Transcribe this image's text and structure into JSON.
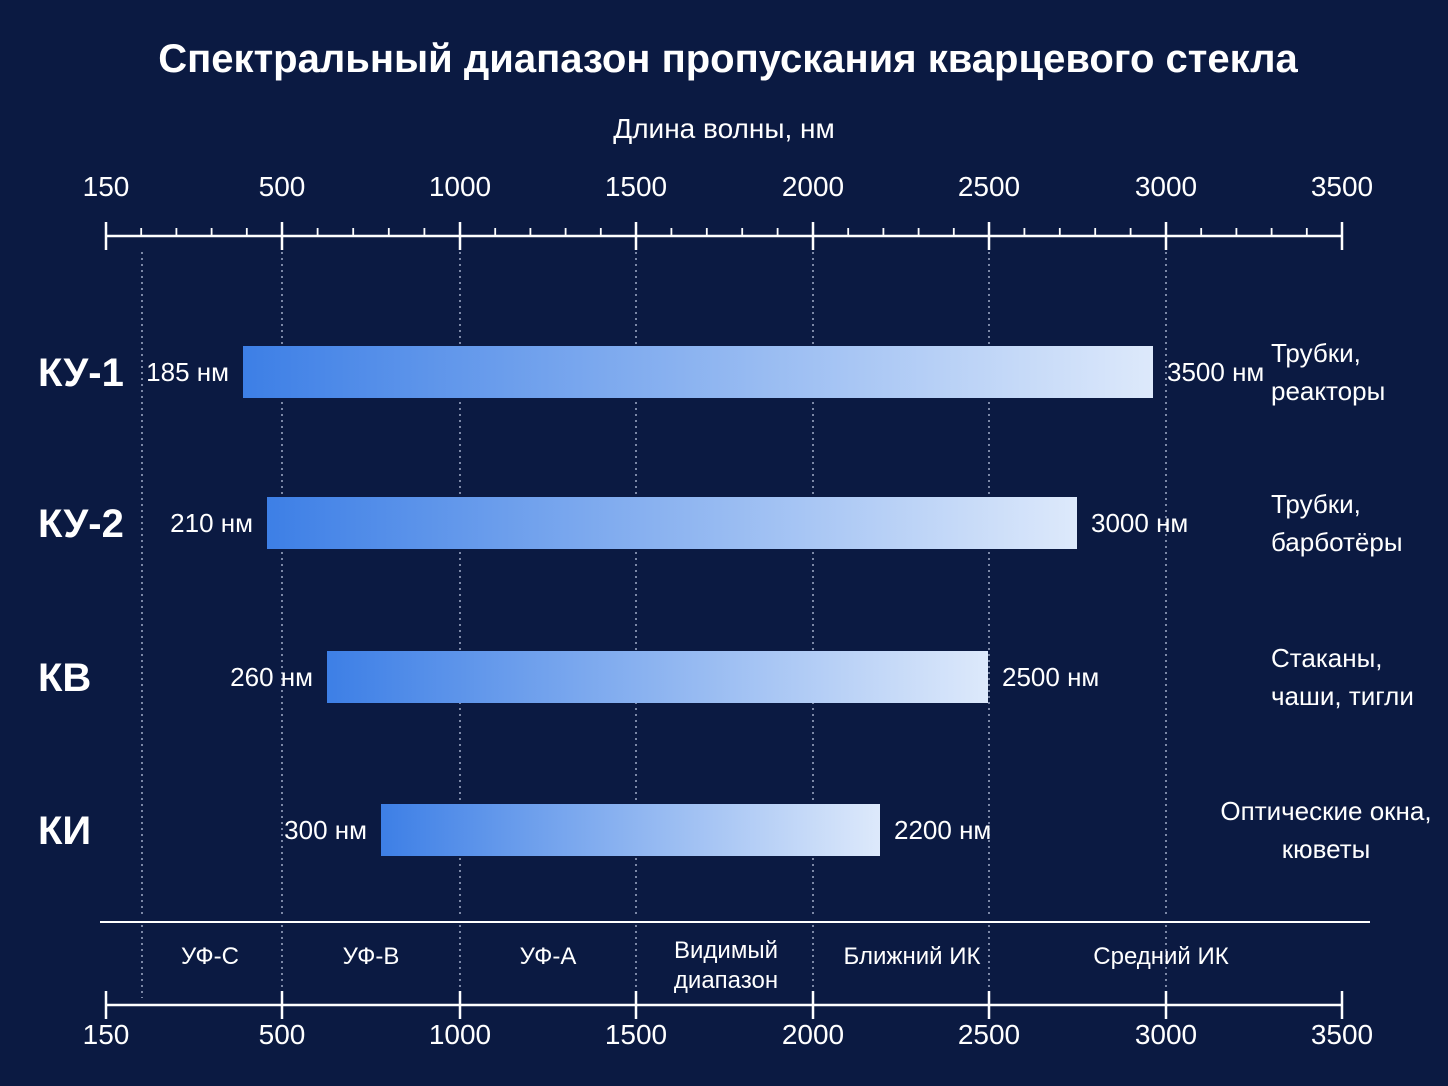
{
  "title": "Спектральный диапазон пропускания кварцевого стекла",
  "chart_data": {
    "type": "bar",
    "orientation": "horizontal-range",
    "xlabel": "Длина волны, нм",
    "ticks": [
      "150",
      "500",
      "1000",
      "1500",
      "2000",
      "2500",
      "3000",
      "3500"
    ],
    "grid": "dotted vertical lines",
    "series": [
      {
        "name": "КУ-1",
        "start": 185,
        "end": 3500,
        "start_label": "185 нм",
        "end_label": "3500 нм",
        "use": [
          "Трубки,",
          "реакторы"
        ]
      },
      {
        "name": "КУ-2",
        "start": 210,
        "end": 3000,
        "start_label": "210 нм",
        "end_label": "3000 нм",
        "use": [
          "Трубки,",
          "барботёры"
        ]
      },
      {
        "name": "КВ",
        "start": 260,
        "end": 2500,
        "start_label": "260 нм",
        "end_label": "2500 нм",
        "use": [
          "Стаканы,",
          "чаши, тигли"
        ]
      },
      {
        "name": "КИ",
        "start": 300,
        "end": 2200,
        "start_label": "300 нм",
        "end_label": "2200 нм",
        "use": [
          "Оптические окна,",
          "кюветы"
        ]
      }
    ],
    "bands": [
      {
        "label": [
          "УФ-С"
        ]
      },
      {
        "label": [
          "УФ-В"
        ]
      },
      {
        "label": [
          "УФ-А"
        ]
      },
      {
        "label": [
          "Видимый",
          "диапазон"
        ]
      },
      {
        "label": [
          "Ближний ИК"
        ]
      },
      {
        "label": [
          "Средний ИК"
        ]
      }
    ],
    "colors": {
      "background": "#0b1a42",
      "bar_start": "#3d7fe6",
      "bar_end": "#dde9fb",
      "axis": "#ffffff"
    }
  }
}
